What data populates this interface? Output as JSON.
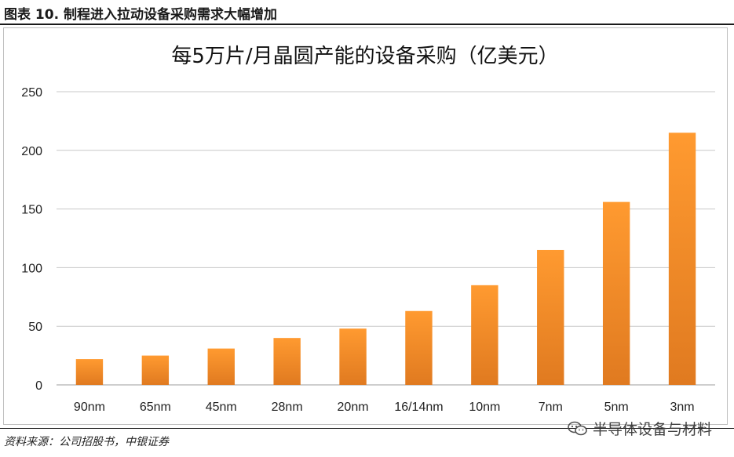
{
  "caption": "图表 10. 制程进入拉动设备采购需求大幅增加",
  "source": "资料来源：公司招股书，中银证券",
  "watermark": {
    "text": "半导体设备与材料",
    "icon": "wechat-icon"
  },
  "colors": {
    "bar_top": "#ff9a30",
    "bar_bottom": "#e07a20",
    "grid": "#c8c8c8",
    "axis": "#9e9e9e"
  },
  "chart_data": {
    "type": "bar",
    "title": "每5万片/月晶圆产能的设备采购（亿美元）",
    "xlabel": "",
    "ylabel": "",
    "categories": [
      "90nm",
      "65nm",
      "45nm",
      "28nm",
      "20nm",
      "16/14nm",
      "10nm",
      "7nm",
      "5nm",
      "3nm"
    ],
    "values": [
      22,
      25,
      31,
      40,
      48,
      63,
      85,
      115,
      156,
      215
    ],
    "ylim": [
      0,
      250
    ],
    "yticks": [
      0,
      50,
      100,
      150,
      200,
      250
    ],
    "grid": true,
    "legend": "none"
  }
}
